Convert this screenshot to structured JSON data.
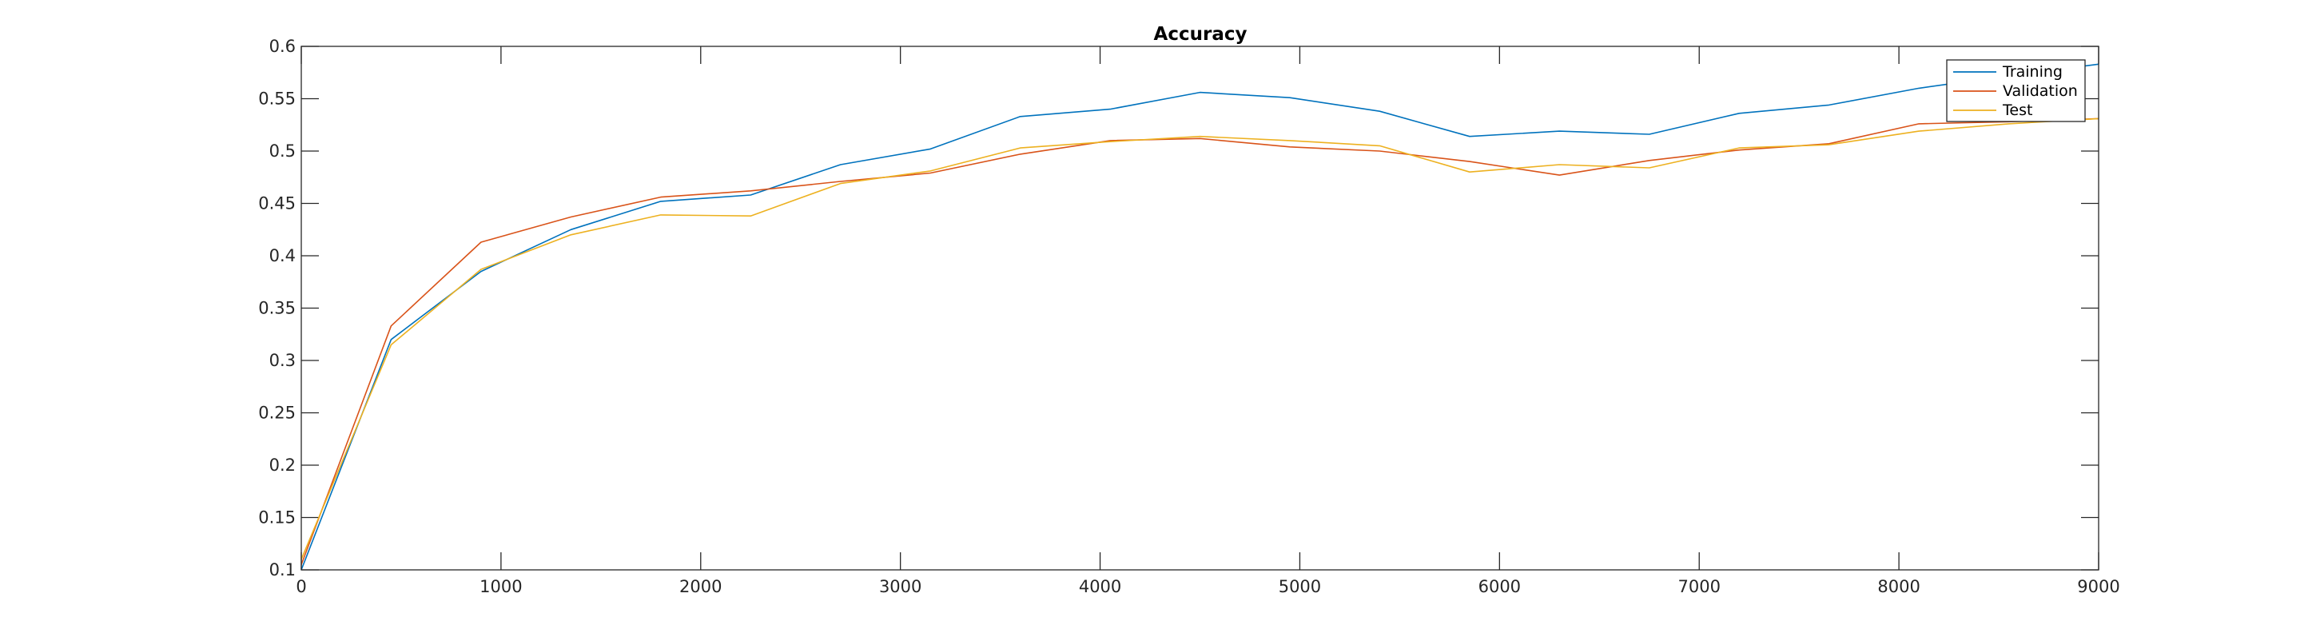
{
  "chart_data": {
    "type": "line",
    "title": "Accuracy",
    "xlabel": "",
    "ylabel": "",
    "xlim": [
      0,
      9000
    ],
    "ylim": [
      0.1,
      0.6
    ],
    "xticks": [
      0,
      1000,
      2000,
      3000,
      4000,
      5000,
      6000,
      7000,
      8000,
      9000
    ],
    "xtick_labels": [
      "0",
      "1000",
      "2000",
      "3000",
      "4000",
      "5000",
      "6000",
      "7000",
      "8000",
      "9000"
    ],
    "yticks": [
      0.1,
      0.15,
      0.2,
      0.25,
      0.3,
      0.35,
      0.4,
      0.45,
      0.5,
      0.55,
      0.6
    ],
    "ytick_labels": [
      "0.1",
      "0.15",
      "0.2",
      "0.25",
      "0.3",
      "0.35",
      "0.4",
      "0.45",
      "0.5",
      "0.55",
      "0.6"
    ],
    "grid": false,
    "legend_position": "top-right",
    "x": [
      0,
      450,
      900,
      1350,
      1800,
      2250,
      2700,
      3150,
      3600,
      4050,
      4500,
      4950,
      5400,
      5850,
      6300,
      6750,
      7200,
      7650,
      8100,
      8550,
      9000
    ],
    "series": [
      {
        "name": "Training",
        "color": "#0072BD",
        "values": [
          0.1,
          0.32,
          0.385,
          0.425,
          0.452,
          0.458,
          0.487,
          0.502,
          0.533,
          0.54,
          0.556,
          0.551,
          0.538,
          0.514,
          0.519,
          0.516,
          0.536,
          0.544,
          0.56,
          0.572,
          0.583
        ]
      },
      {
        "name": "Validation",
        "color": "#D95319",
        "values": [
          0.105,
          0.333,
          0.413,
          0.437,
          0.456,
          0.462,
          0.471,
          0.479,
          0.497,
          0.51,
          0.512,
          0.504,
          0.5,
          0.49,
          0.477,
          0.491,
          0.501,
          0.507,
          0.526,
          0.528,
          0.531
        ]
      },
      {
        "name": "Test",
        "color": "#EDB120",
        "values": [
          0.11,
          0.315,
          0.387,
          0.42,
          0.439,
          0.438,
          0.469,
          0.481,
          0.503,
          0.509,
          0.514,
          0.51,
          0.505,
          0.48,
          0.487,
          0.484,
          0.503,
          0.506,
          0.519,
          0.526,
          0.531
        ]
      }
    ]
  }
}
